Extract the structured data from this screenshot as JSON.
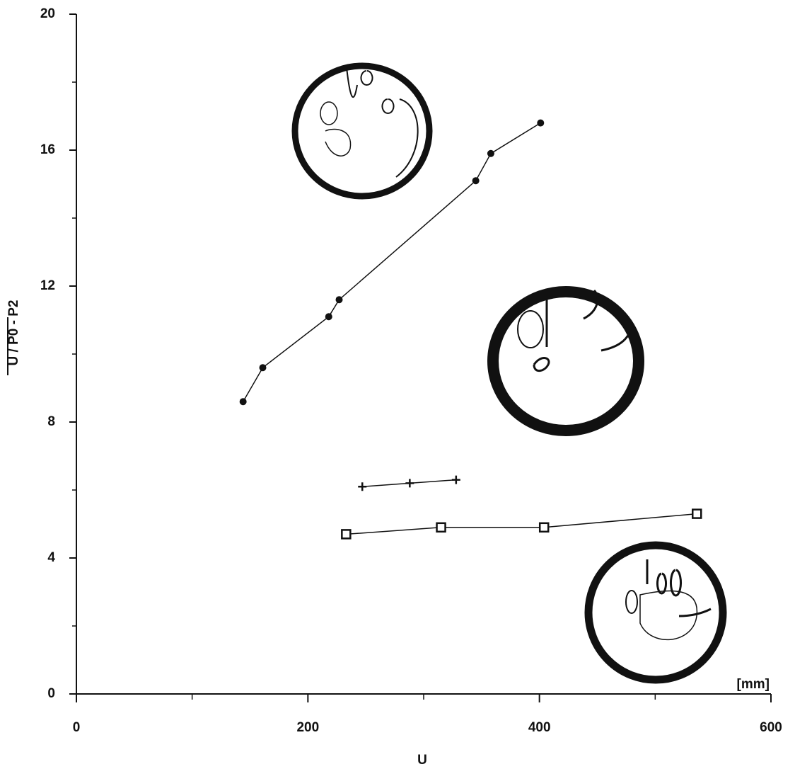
{
  "chart_data": {
    "type": "line",
    "x_label": "U",
    "y_label": "U / P0 - P2",
    "annotation": "[mm]",
    "xlim": [
      0,
      600
    ],
    "ylim": [
      0,
      20
    ],
    "xticks": [
      0,
      200,
      400,
      600
    ],
    "yticks": [
      0,
      4,
      8,
      12,
      16,
      20
    ],
    "xminor": [
      100,
      300,
      500
    ],
    "yminor": [
      2,
      6,
      10,
      14,
      18
    ],
    "series": [
      {
        "marker": "circle",
        "color": "#111111",
        "x": [
          144,
          161,
          218,
          227,
          345,
          358,
          401
        ],
        "values": [
          8.6,
          9.6,
          11.1,
          11.6,
          15.1,
          15.9,
          16.8
        ]
      },
      {
        "marker": "plus",
        "color": "#111111",
        "x": [
          247,
          288,
          328
        ],
        "values": [
          6.1,
          6.2,
          6.3
        ]
      },
      {
        "marker": "square",
        "color": "#111111",
        "x": [
          233,
          315,
          404,
          536
        ],
        "values": [
          4.7,
          4.9,
          4.9,
          5.3
        ]
      }
    ]
  }
}
